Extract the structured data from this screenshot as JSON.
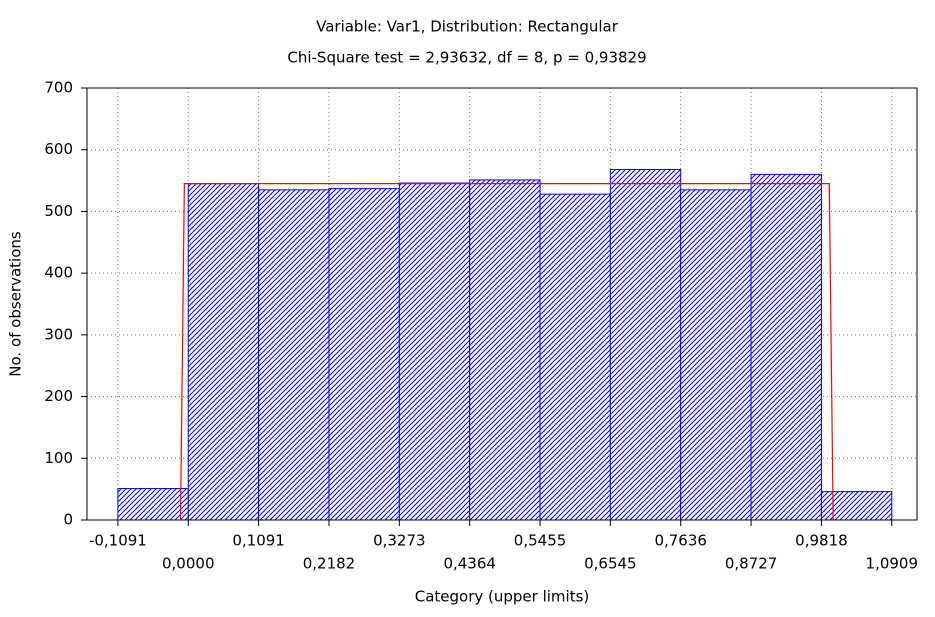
{
  "chart_data": {
    "type": "histogram",
    "title": "Variable: Var1, Distribution: Rectangular",
    "subtitle": "Chi-Square test = 2,93632, df = 8, p = 0,93829",
    "xlabel": "Category (upper limits)",
    "ylabel": "No. of observations",
    "bins": [
      -0.1091,
      0.0,
      0.1091,
      0.2182,
      0.3273,
      0.4364,
      0.5455,
      0.6545,
      0.7636,
      0.8727,
      0.9818,
      1.0909
    ],
    "values": [
      51,
      545,
      535,
      537,
      546,
      551,
      528,
      568,
      535,
      560,
      46
    ],
    "color": "#0000ff",
    "fit": {
      "x": [
        -0.012,
        -0.006,
        0.994,
        1.0
      ],
      "y": [
        0,
        545,
        545,
        0
      ],
      "color": "#ff0000"
    },
    "xlim": [
      -0.157,
      1.13
    ],
    "ylim": [
      0,
      700
    ],
    "xticks": [
      {
        "value": -0.1091,
        "label": "-0,1091"
      },
      {
        "value": 0.0,
        "label": "0,0000"
      },
      {
        "value": 0.1091,
        "label": "0,1091"
      },
      {
        "value": 0.2182,
        "label": "0,2182"
      },
      {
        "value": 0.3273,
        "label": "0,3273"
      },
      {
        "value": 0.4364,
        "label": "0,4364"
      },
      {
        "value": 0.5455,
        "label": "0,5455"
      },
      {
        "value": 0.6545,
        "label": "0,6545"
      },
      {
        "value": 0.7636,
        "label": "0,7636"
      },
      {
        "value": 0.8727,
        "label": "0,8727"
      },
      {
        "value": 0.9818,
        "label": "0,9818"
      },
      {
        "value": 1.0909,
        "label": "1,0909"
      }
    ],
    "yticks": [
      0,
      100,
      200,
      300,
      400,
      500,
      600,
      700
    ],
    "grid": true
  }
}
